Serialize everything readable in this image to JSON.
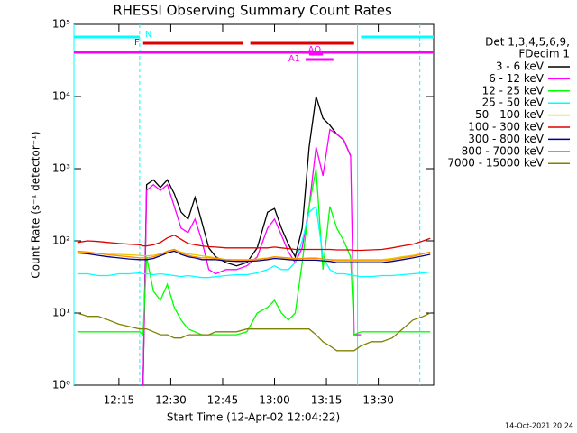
{
  "chart_data": {
    "type": "line",
    "title": "RHESSI Observing Summary Count Rates",
    "x_label": "Start Time (12-Apr-02 12:04:22)",
    "y_label": "Count Rate (s⁻¹ detector⁻¹)",
    "timestamp": "14-Oct-2021 20:24",
    "legend_title": [
      "Det 1,3,4,5,6,9,",
      "FDecim 1"
    ],
    "log_y": true,
    "xlim": [
      "12:02",
      "13:46"
    ],
    "xticks": [
      "12:15",
      "12:30",
      "12:45",
      "13:00",
      "13:15",
      "13:30"
    ],
    "ylim": [
      1,
      100000
    ],
    "yticks": [
      {
        "value": 1,
        "label": "10⁰"
      },
      {
        "value": 10,
        "label": "10¹"
      },
      {
        "value": 100,
        "label": "10²"
      },
      {
        "value": 1000,
        "label": "10³"
      },
      {
        "value": 10000,
        "label": "10⁴"
      },
      {
        "value": 100000,
        "label": "10⁵"
      }
    ],
    "x": [
      "12:03",
      "12:06",
      "12:09",
      "12:12",
      "12:15",
      "12:18",
      "12:21",
      "12:22",
      "12:23",
      "12:25",
      "12:27",
      "12:29",
      "12:31",
      "12:33",
      "12:35",
      "12:37",
      "12:39",
      "12:41",
      "12:43",
      "12:46",
      "12:49",
      "12:52",
      "12:55",
      "12:58",
      "13:00",
      "13:02",
      "13:04",
      "13:06",
      "13:08",
      "13:10",
      "13:12",
      "13:14",
      "13:16",
      "13:18",
      "13:20",
      "13:22",
      "13:23",
      "13:25",
      "13:28",
      "13:31",
      "13:34",
      "13:37",
      "13:40",
      "13:43",
      "13:45"
    ],
    "series": [
      {
        "name": "3 - 6 keV",
        "color": "#000000",
        "values": [
          null,
          null,
          null,
          null,
          null,
          null,
          null,
          1,
          600,
          700,
          550,
          700,
          450,
          250,
          200,
          400,
          180,
          80,
          60,
          50,
          45,
          50,
          80,
          250,
          280,
          150,
          90,
          60,
          150,
          2000,
          10000,
          5000,
          4000,
          3000,
          2500,
          1500,
          null,
          null,
          null,
          null,
          null,
          null,
          null,
          null,
          null
        ]
      },
      {
        "name": "6 - 12 keV",
        "color": "#ff00ff",
        "values": [
          null,
          null,
          null,
          null,
          null,
          null,
          null,
          1,
          500,
          600,
          500,
          600,
          300,
          150,
          130,
          200,
          100,
          40,
          35,
          40,
          40,
          45,
          60,
          150,
          200,
          120,
          70,
          50,
          80,
          300,
          2000,
          800,
          3500,
          3000,
          2500,
          1500,
          5,
          5,
          null,
          null,
          null,
          null,
          null,
          null,
          null
        ]
      },
      {
        "name": "12 - 25 keV",
        "color": "#00ff00",
        "values": [
          5.5,
          5.5,
          5.5,
          5.5,
          5.5,
          5.5,
          5.5,
          5,
          60,
          20,
          15,
          25,
          12,
          8,
          6,
          5.5,
          5,
          5,
          5,
          5,
          5,
          5.5,
          10,
          12,
          15,
          10,
          8,
          10,
          50,
          300,
          1000,
          40,
          300,
          150,
          100,
          60,
          5,
          5.5,
          5.5,
          5.5,
          5.5,
          5.5,
          5.5,
          5.5,
          5.5
        ]
      },
      {
        "name": "25 - 50 keV",
        "color": "#00ffff",
        "values": [
          35,
          35,
          33,
          33,
          35,
          35,
          36,
          35,
          35,
          34,
          35,
          34,
          33,
          32,
          33,
          32,
          31,
          31,
          32,
          33,
          34,
          34,
          36,
          40,
          45,
          40,
          40,
          50,
          100,
          250,
          300,
          60,
          40,
          35,
          35,
          34,
          33,
          32,
          32,
          33,
          33,
          34,
          35,
          36,
          37
        ]
      },
      {
        "name": "50 - 100 keV",
        "color": "#e8c800",
        "values": [
          70,
          68,
          66,
          65,
          65,
          64,
          63,
          62,
          62,
          63,
          66,
          70,
          75,
          70,
          66,
          64,
          62,
          60,
          58,
          55,
          55,
          55,
          56,
          58,
          60,
          58,
          57,
          56,
          57,
          58,
          58,
          56,
          55,
          55,
          55,
          55,
          55,
          55,
          55,
          55,
          57,
          60,
          63,
          67,
          70
        ]
      },
      {
        "name": "100 - 300 keV",
        "color": "#e00000",
        "values": [
          95,
          100,
          98,
          95,
          92,
          90,
          88,
          85,
          85,
          88,
          95,
          110,
          120,
          105,
          92,
          88,
          85,
          83,
          82,
          80,
          80,
          80,
          80,
          80,
          82,
          80,
          78,
          76,
          76,
          76,
          76,
          76,
          76,
          75,
          75,
          75,
          74,
          74,
          75,
          76,
          80,
          85,
          90,
          100,
          108
        ]
      },
      {
        "name": "300 - 800 keV",
        "color": "#00008b",
        "values": [
          68,
          66,
          63,
          60,
          58,
          56,
          55,
          55,
          55,
          57,
          62,
          68,
          72,
          65,
          60,
          58,
          55,
          55,
          55,
          53,
          52,
          52,
          53,
          55,
          57,
          56,
          55,
          54,
          54,
          54,
          54,
          53,
          52,
          50,
          50,
          50,
          50,
          50,
          50,
          50,
          52,
          55,
          58,
          62,
          65
        ]
      },
      {
        "name": "800 - 7000 keV",
        "color": "#ff8c00",
        "values": [
          72,
          70,
          67,
          64,
          62,
          60,
          58,
          58,
          58,
          60,
          65,
          72,
          76,
          68,
          63,
          60,
          58,
          58,
          57,
          55,
          54,
          54,
          55,
          57,
          60,
          59,
          58,
          57,
          57,
          57,
          57,
          56,
          55,
          53,
          53,
          53,
          53,
          53,
          53,
          53,
          55,
          58,
          61,
          66,
          70
        ]
      },
      {
        "name": "7000 - 15000 keV",
        "color": "#808000",
        "values": [
          10,
          9,
          9,
          8,
          7,
          6.5,
          6,
          6,
          6,
          5.5,
          5,
          5,
          4.5,
          4.5,
          5,
          5,
          5,
          5,
          5.5,
          5.5,
          5.5,
          6,
          6,
          6,
          6,
          6,
          6,
          6,
          6,
          6,
          5,
          4,
          3.5,
          3,
          3,
          3,
          3,
          3.5,
          4,
          4,
          4.5,
          6,
          8,
          9,
          10
        ]
      }
    ],
    "flags": [
      {
        "label": "N",
        "color": "#00ffff",
        "segments": [
          [
            "12:02",
            "12:21"
          ],
          [
            "13:25",
            "13:46"
          ]
        ]
      },
      {
        "label": "F",
        "color": "#dd0000",
        "segments": [
          [
            "12:22",
            "12:51"
          ],
          [
            "12:53",
            "13:23"
          ]
        ]
      },
      {
        "color": "#ff00ff",
        "segments": [
          [
            "12:02",
            "13:46"
          ]
        ]
      },
      {
        "label": "AQ",
        "color": "#ff00ff",
        "segments": [
          [
            "13:10",
            "13:14"
          ]
        ]
      },
      {
        "label": "A1",
        "color": "#ff00ff",
        "segments": [
          [
            "13:09",
            "13:17"
          ]
        ]
      }
    ],
    "vlines": [
      {
        "x": "12:02",
        "color": "#00ffff",
        "dash": false
      },
      {
        "x": "12:21",
        "color": "#00ffff",
        "dash": true
      },
      {
        "x": "13:24",
        "color": "#00ffff",
        "dash": false
      },
      {
        "x": "13:42",
        "color": "#00ffff",
        "dash": true
      }
    ]
  }
}
